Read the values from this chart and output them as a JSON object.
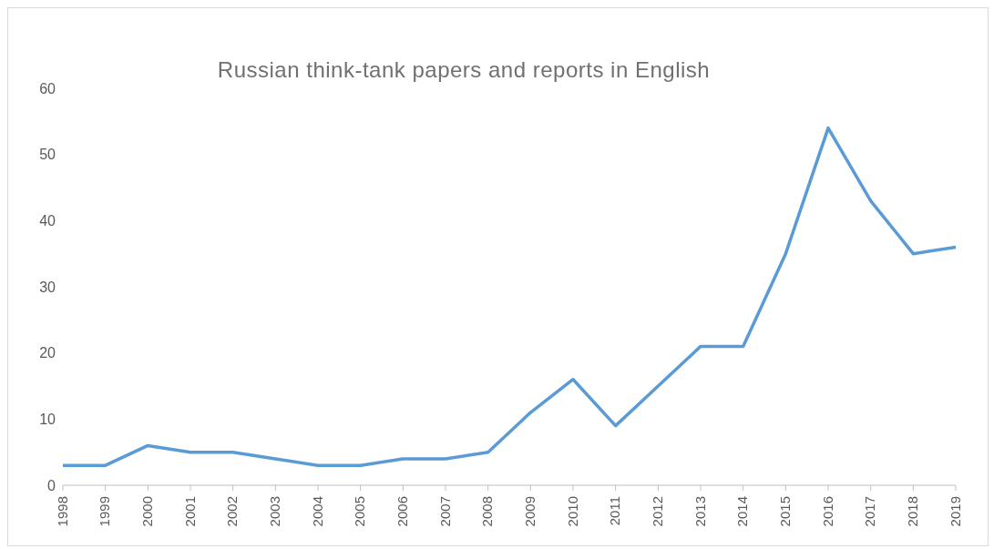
{
  "chart_data": {
    "type": "line",
    "title": "Russian think-tank papers and reports in English",
    "categories": [
      "1998",
      "1999",
      "2000",
      "2001",
      "2002",
      "2003",
      "2004",
      "2005",
      "2006",
      "2007",
      "2008",
      "2009",
      "2010",
      "2011",
      "2012",
      "2013",
      "2014",
      "2015",
      "2016",
      "2017",
      "2018",
      "2019"
    ],
    "series": [
      {
        "color": "#5b9bd5",
        "values": [
          3,
          3,
          6,
          5,
          5,
          4,
          3,
          3,
          4,
          4,
          5,
          11,
          16,
          9,
          15,
          21,
          21,
          35,
          54,
          43,
          35,
          36
        ]
      }
    ],
    "ylim": [
      0,
      60
    ],
    "yticks": [
      0,
      10,
      20,
      30,
      40,
      50,
      60
    ],
    "grid": false,
    "legend": false,
    "marker": "none",
    "line_style": "solid"
  }
}
